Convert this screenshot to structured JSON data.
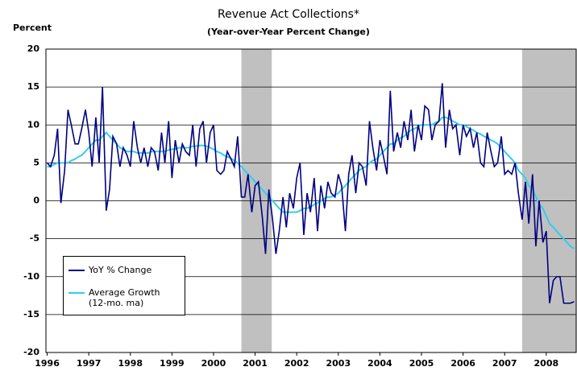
{
  "chart_data": {
    "type": "line",
    "title": "Revenue Act Collections*",
    "subtitle": "(Year-over-Year Percent Change)",
    "y_label": "Percent",
    "x": [
      1996.5,
      1996.58,
      1996.67,
      1996.75,
      1996.83,
      1996.92,
      1997.0,
      1997.08,
      1997.17,
      1997.25,
      1997.33,
      1997.42,
      1997.5,
      1997.58,
      1997.67,
      1997.75,
      1997.83,
      1997.92,
      1998.0,
      1998.08,
      1998.17,
      1998.25,
      1998.33,
      1998.42,
      1998.5,
      1998.58,
      1998.67,
      1998.75,
      1998.83,
      1998.92,
      1999.0,
      1999.08,
      1999.17,
      1999.25,
      1999.33,
      1999.42,
      1999.5,
      1999.58,
      1999.67,
      1999.75,
      1999.83,
      1999.92,
      2000.0,
      2000.08,
      2000.17,
      2000.25,
      2000.33,
      2000.42,
      2000.5,
      2000.58,
      2000.67,
      2000.75,
      2000.83,
      2000.92,
      2001.0,
      2001.08,
      2001.17,
      2001.25,
      2001.33,
      2001.42,
      2001.5,
      2001.58,
      2001.67,
      2001.75,
      2001.83,
      2001.92,
      2002.0,
      2002.08,
      2002.17,
      2002.25,
      2002.33,
      2002.42,
      2002.5,
      2002.58,
      2002.67,
      2002.75,
      2002.83,
      2002.92,
      2003.0,
      2003.08,
      2003.17,
      2003.25,
      2003.33,
      2003.42,
      2003.5,
      2003.58,
      2003.67,
      2003.75,
      2003.83,
      2003.92,
      2004.0,
      2004.08,
      2004.17,
      2004.25,
      2004.33,
      2004.42,
      2004.5,
      2004.58,
      2004.67,
      2004.75,
      2004.83,
      2004.92,
      2005.0,
      2005.08,
      2005.17,
      2005.25,
      2005.33,
      2005.42,
      2005.5,
      2005.58,
      2005.67,
      2005.75,
      2005.83,
      2005.92,
      2006.0,
      2006.08,
      2006.17,
      2006.25,
      2006.33,
      2006.42,
      2006.5,
      2006.58,
      2006.67,
      2006.75,
      2006.83,
      2006.92,
      2007.0,
      2007.08,
      2007.17,
      2007.25,
      2007.33,
      2007.42,
      2007.5,
      2007.58,
      2007.67,
      2007.75,
      2007.83,
      2007.92,
      2008.0,
      2008.08,
      2008.17,
      2008.25,
      2008.33,
      2008.42,
      2008.5,
      2008.58,
      2008.67,
      2008.75,
      2008.83,
      2008.92,
      2009.0,
      2009.08,
      2009.17
    ],
    "series": [
      {
        "name": "YoY % Change",
        "color": "#000080",
        "values": [
          5,
          4.5,
          6,
          9.5,
          -0.3,
          4,
          12,
          10,
          7.5,
          7.5,
          9.5,
          12,
          9,
          4.5,
          11,
          5,
          15,
          -1.3,
          1.5,
          8.5,
          7.5,
          4.5,
          7,
          6,
          4.5,
          10.5,
          7,
          5,
          7,
          4.5,
          7,
          6.5,
          4,
          9,
          5,
          10.5,
          3,
          8,
          5,
          7.5,
          6.5,
          6,
          10,
          4.5,
          9.5,
          10.5,
          5,
          9,
          10,
          4,
          3.5,
          4,
          6.5,
          5.5,
          4.5,
          8.5,
          0.5,
          0.5,
          3.5,
          -1.5,
          2,
          2.5,
          -2,
          -7,
          1.5,
          -2.5,
          -7,
          -4,
          0.5,
          -3.5,
          1,
          -1,
          3,
          5,
          -4.5,
          1,
          -1.5,
          3,
          -4,
          2,
          -1,
          2.5,
          1,
          0.5,
          3.5,
          2,
          -4,
          3.5,
          6,
          1,
          5,
          4.5,
          2,
          10.5,
          7,
          4,
          8,
          6,
          3.5,
          14.5,
          6.5,
          9,
          7,
          10.5,
          8,
          12,
          6.5,
          10,
          8,
          12.5,
          12,
          8,
          10,
          10.5,
          15.5,
          7,
          12,
          9.5,
          10,
          6,
          10,
          8.5,
          9.5,
          7,
          9,
          5,
          4.5,
          9,
          6.5,
          4.5,
          5,
          8.5,
          3.5,
          4,
          3.5,
          5,
          1,
          -2.5,
          2.5,
          -3,
          3.5,
          -6,
          0,
          -5.5,
          -4,
          -13.5,
          -10.5,
          -10,
          -10,
          -13.5,
          -13.5,
          -13.5,
          -13.3
        ]
      },
      {
        "name": "Average Growth (12-mo. ma)",
        "color": "#33ccee",
        "values": [
          4.5,
          4.5,
          4.8,
          5,
          5,
          5,
          5,
          5.3,
          5.5,
          5.8,
          6,
          6.5,
          7,
          7.5,
          8,
          8,
          8.5,
          9,
          8.5,
          8,
          7.5,
          7,
          6.8,
          6.5,
          6.5,
          6.5,
          6.3,
          6.3,
          6.3,
          6.3,
          6.5,
          6.5,
          6.5,
          6.5,
          6.5,
          6.7,
          6.8,
          6.8,
          7,
          7,
          7,
          7,
          7.2,
          7.2,
          7.3,
          7.3,
          7.2,
          7,
          6.8,
          6.5,
          6.3,
          6,
          5.8,
          5.6,
          5.3,
          5,
          4.5,
          4,
          3.5,
          3,
          2.5,
          2,
          1.5,
          1,
          0.5,
          0,
          -0.5,
          -1,
          -1.5,
          -1.5,
          -1.5,
          -1.5,
          -1.5,
          -1.3,
          -1,
          -1,
          -0.8,
          -0.5,
          -0.3,
          0,
          0.3,
          0.5,
          0.5,
          0.8,
          1,
          1.5,
          2,
          2.5,
          3,
          3.5,
          4,
          4.3,
          4.5,
          5,
          5.3,
          5.5,
          6,
          6.5,
          7,
          7.5,
          7.5,
          8,
          8.3,
          8.5,
          9,
          9.3,
          9.5,
          9.8,
          10,
          10,
          10,
          10,
          10.3,
          10.5,
          11,
          11,
          10.8,
          10.5,
          10.3,
          10,
          10,
          9.8,
          9.5,
          9.3,
          9,
          8.8,
          8.5,
          8.3,
          8,
          7.8,
          7.5,
          7,
          6.5,
          6,
          5.5,
          5,
          4,
          3.5,
          3,
          2,
          1.5,
          0.5,
          -0.5,
          -1,
          -2,
          -3,
          -3.5,
          -4,
          -4.5,
          -5,
          -5.5,
          -6,
          -6.3
        ]
      }
    ],
    "recessions": [
      [
        2001.17,
        2001.9
      ],
      [
        2007.92,
        2009.22
      ]
    ],
    "recession_color": "#c0c0c0",
    "xlim": [
      1996.47,
      2009.22
    ],
    "xticks": [
      {
        "value": 1996.5,
        "label": "1996"
      },
      {
        "value": 1997.5,
        "label": "1997"
      },
      {
        "value": 1998.5,
        "label": "1998"
      },
      {
        "value": 1999.5,
        "label": "1999"
      },
      {
        "value": 2000.5,
        "label": "2000"
      },
      {
        "value": 2001.5,
        "label": "2001"
      },
      {
        "value": 2002.5,
        "label": "2002"
      },
      {
        "value": 2003.5,
        "label": "2003"
      },
      {
        "value": 2004.5,
        "label": "2004"
      },
      {
        "value": 2005.5,
        "label": "2005"
      },
      {
        "value": 2006.5,
        "label": "2006"
      },
      {
        "value": 2007.5,
        "label": "2007"
      },
      {
        "value": 2008.5,
        "label": "2008"
      }
    ],
    "ylim": [
      -20,
      20
    ],
    "yticks": [
      -20,
      -15,
      -10,
      -5,
      0,
      5,
      10,
      15,
      20
    ],
    "grid": true,
    "legend": "lower left"
  }
}
